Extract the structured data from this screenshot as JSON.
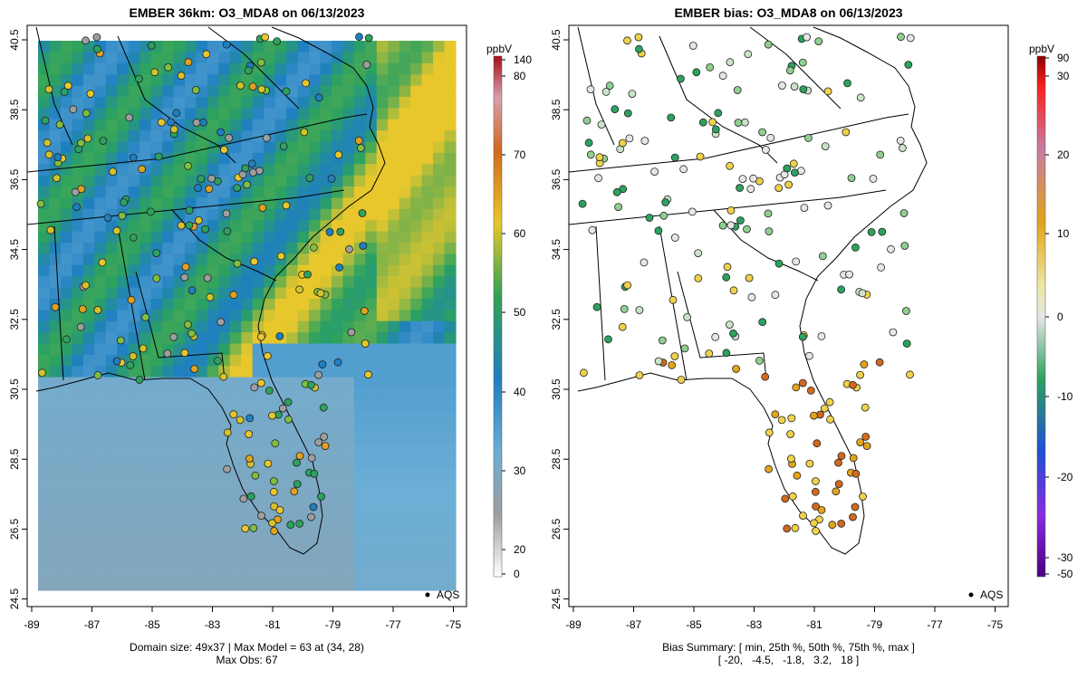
{
  "left_panel": {
    "title": "EMBER 36km: O3_MDA8 on 06/13/2023",
    "footer_line1": "Domain size: 49x37 | Max Model = 63 at (34, 28)",
    "footer_line2": "Max Obs: 67",
    "legend_label": "AQS",
    "colorbar_unit": "ppbV",
    "colorbar_ticks": [
      "140",
      "80",
      "70",
      "60",
      "50",
      "40",
      "30",
      "20",
      "0"
    ],
    "x_ticks": [
      "-89",
      "-87",
      "-85",
      "-83",
      "-81",
      "-79",
      "-77",
      "-75"
    ],
    "y_ticks": [
      "40.5",
      "38.5",
      "36.5",
      "34.5",
      "32.5",
      "30.5",
      "28.5",
      "26.5",
      "24.5"
    ]
  },
  "right_panel": {
    "title": "EMBER bias: O3_MDA8 on 06/13/2023",
    "footer_line1": "Bias Summary: [ min, 25th %, 50th %, 75th %, max ]",
    "footer_line2": "[ -20,   -4.5,   -1.8,   3.2,   18 ]",
    "legend_label": "AQS",
    "colorbar_unit": "ppbV",
    "colorbar_ticks": [
      "90",
      "30",
      "20",
      "10",
      "0",
      "-10",
      "-20",
      "-30",
      "-50"
    ],
    "x_ticks": [
      "-89",
      "-87",
      "-85",
      "-83",
      "-81",
      "-79",
      "-77",
      "-75"
    ],
    "y_ticks": [
      "40.5",
      "38.5",
      "36.5",
      "34.5",
      "32.5",
      "30.5",
      "28.5",
      "26.5",
      "24.5"
    ]
  },
  "colors": {
    "model_low": "#9e9e9e",
    "model_mid": "#1f7fc1",
    "model_green": "#2ca25f",
    "model_high": "#e8c72c",
    "bias_neg": "#2ca25f",
    "bias_zero": "#e6e6e6",
    "bias_pos": "#e2a418",
    "bias_strong_pos": "#d2691e"
  }
}
